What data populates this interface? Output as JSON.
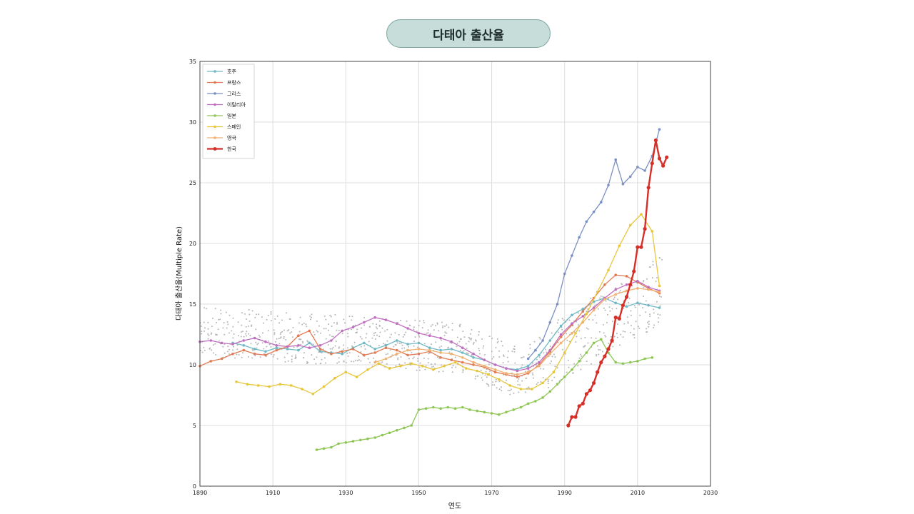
{
  "header": {
    "title": "다태아 출산율"
  },
  "chart_data": {
    "type": "line",
    "title": "다태아 출산율",
    "xlabel": "연도",
    "ylabel": "다태아 출산율(Multiple Rate)",
    "xlim": [
      1890,
      2030
    ],
    "ylim": [
      0,
      35
    ],
    "xticks": [
      1890,
      1910,
      1930,
      1950,
      1970,
      1990,
      2010,
      2030
    ],
    "yticks": [
      0,
      5,
      10,
      15,
      20,
      25,
      30,
      35
    ],
    "grid": true,
    "legend_position": "top-left",
    "series": [
      {
        "name": "호주",
        "color": "#6fb8c6",
        "x": [
          1899,
          1902,
          1905,
          1908,
          1911,
          1914,
          1917,
          1920,
          1923,
          1926,
          1929,
          1932,
          1935,
          1938,
          1941,
          1944,
          1947,
          1950,
          1953,
          1956,
          1959,
          1962,
          1965,
          1968,
          1971,
          1974,
          1977,
          1980,
          1983,
          1986,
          1989,
          1992,
          1995,
          1998,
          2001,
          2004,
          2007,
          2010,
          2013,
          2016
        ],
        "y": [
          11.8,
          11.6,
          11.3,
          11.1,
          11.4,
          11.3,
          11.2,
          11.8,
          11.1,
          11.0,
          10.9,
          11.4,
          11.8,
          11.3,
          11.6,
          12.0,
          11.7,
          11.8,
          11.4,
          11.2,
          11.3,
          11.0,
          10.6,
          10.4,
          10.0,
          9.7,
          9.6,
          9.9,
          10.8,
          12.0,
          13.2,
          14.1,
          14.6,
          15.2,
          15.5,
          15.1,
          14.8,
          15.1,
          14.9,
          14.7
        ]
      },
      {
        "name": "프랑스",
        "color": "#e07b54",
        "x": [
          1890,
          1893,
          1896,
          1899,
          1902,
          1905,
          1908,
          1911,
          1914,
          1917,
          1920,
          1923,
          1926,
          1929,
          1932,
          1935,
          1938,
          1941,
          1944,
          1947,
          1950,
          1953,
          1956,
          1959,
          1962,
          1965,
          1968,
          1971,
          1974,
          1977,
          1980,
          1983,
          1986,
          1989,
          1992,
          1995,
          1998,
          2001,
          2004,
          2007,
          2010,
          2013,
          2016
        ],
        "y": [
          9.9,
          10.3,
          10.5,
          10.9,
          11.2,
          10.9,
          10.8,
          11.2,
          11.5,
          12.4,
          12.8,
          11.3,
          10.9,
          11.1,
          11.3,
          10.8,
          11.0,
          11.4,
          11.2,
          10.8,
          10.9,
          11.1,
          10.6,
          10.4,
          10.2,
          10.0,
          9.8,
          9.4,
          9.2,
          9.0,
          9.3,
          10.0,
          11.1,
          12.3,
          13.3,
          14.4,
          15.5,
          16.6,
          17.4,
          17.3,
          16.8,
          16.3,
          15.9
        ]
      },
      {
        "name": "그리스",
        "color": "#7a8fc4",
        "x": [
          1980,
          1982,
          1984,
          1986,
          1988,
          1990,
          1992,
          1994,
          1996,
          1998,
          2000,
          2002,
          2004,
          2006,
          2008,
          2010,
          2012,
          2014,
          2016
        ],
        "y": [
          10.5,
          11.2,
          12.0,
          13.5,
          15.0,
          17.5,
          19.0,
          20.5,
          21.8,
          22.6,
          23.4,
          24.8,
          26.9,
          24.9,
          25.5,
          26.3,
          26.0,
          27.2,
          29.4
        ]
      },
      {
        "name": "이탈리아",
        "color": "#c06fc0",
        "x": [
          1890,
          1893,
          1896,
          1899,
          1902,
          1905,
          1908,
          1911,
          1914,
          1917,
          1920,
          1923,
          1926,
          1929,
          1932,
          1935,
          1938,
          1941,
          1944,
          1947,
          1950,
          1953,
          1956,
          1959,
          1962,
          1965,
          1968,
          1971,
          1974,
          1977,
          1980,
          1983,
          1986,
          1989,
          1992,
          1995,
          1998,
          2001,
          2004,
          2007,
          2010,
          2013,
          2016
        ],
        "y": [
          11.9,
          12.0,
          11.8,
          11.7,
          12.0,
          12.2,
          11.9,
          11.6,
          11.5,
          11.6,
          11.4,
          11.6,
          12.0,
          12.8,
          13.1,
          13.5,
          13.9,
          13.7,
          13.4,
          13.0,
          12.6,
          12.4,
          12.2,
          11.9,
          11.4,
          10.9,
          10.4,
          10.0,
          9.7,
          9.5,
          9.7,
          10.2,
          11.2,
          12.5,
          13.4,
          14.0,
          14.7,
          15.5,
          16.2,
          16.6,
          16.9,
          16.4,
          16.1
        ]
      },
      {
        "name": "일본",
        "color": "#8dc653",
        "x": [
          1922,
          1924,
          1926,
          1928,
          1930,
          1932,
          1934,
          1936,
          1938,
          1940,
          1942,
          1944,
          1946,
          1948,
          1950,
          1952,
          1954,
          1956,
          1958,
          1960,
          1962,
          1964,
          1966,
          1968,
          1970,
          1972,
          1974,
          1976,
          1978,
          1980,
          1982,
          1984,
          1986,
          1988,
          1990,
          1992,
          1994,
          1996,
          1998,
          2000,
          2002,
          2004,
          2006,
          2008,
          2010,
          2012,
          2014
        ],
        "y": [
          3.0,
          3.1,
          3.2,
          3.5,
          3.6,
          3.7,
          3.8,
          3.9,
          4.0,
          4.2,
          4.4,
          4.6,
          4.8,
          5.0,
          6.3,
          6.4,
          6.5,
          6.4,
          6.5,
          6.4,
          6.5,
          6.3,
          6.2,
          6.1,
          6.0,
          5.9,
          6.1,
          6.3,
          6.5,
          6.8,
          7.0,
          7.3,
          7.8,
          8.4,
          9.0,
          9.6,
          10.3,
          11.0,
          11.8,
          12.1,
          11.0,
          10.2,
          10.1,
          10.2,
          10.3,
          10.5,
          10.6
        ]
      },
      {
        "name": "스페인",
        "color": "#e8c63a",
        "x": [
          1900,
          1903,
          1906,
          1909,
          1912,
          1915,
          1918,
          1921,
          1924,
          1927,
          1930,
          1933,
          1936,
          1939,
          1942,
          1945,
          1948,
          1951,
          1954,
          1957,
          1960,
          1963,
          1966,
          1969,
          1972,
          1975,
          1978,
          1981,
          1984,
          1987,
          1990,
          1993,
          1996,
          1999,
          2002,
          2005,
          2008,
          2011,
          2014,
          2016
        ],
        "y": [
          8.6,
          8.4,
          8.3,
          8.2,
          8.4,
          8.3,
          8.0,
          7.6,
          8.2,
          8.9,
          9.4,
          9.0,
          9.6,
          10.1,
          9.7,
          9.9,
          10.1,
          9.9,
          9.6,
          9.9,
          10.2,
          9.7,
          9.5,
          9.2,
          8.8,
          8.3,
          8.0,
          8.0,
          8.5,
          9.4,
          11.0,
          12.6,
          14.2,
          16.0,
          17.8,
          19.8,
          21.5,
          22.4,
          21.0,
          16.5
        ]
      },
      {
        "name": "영국",
        "color": "#f0b070",
        "x": [
          1938,
          1941,
          1944,
          1947,
          1950,
          1953,
          1956,
          1959,
          1962,
          1965,
          1968,
          1971,
          1974,
          1977,
          1980,
          1983,
          1986,
          1989,
          1992,
          1995,
          1998,
          2001,
          2004,
          2007,
          2010,
          2013,
          2016
        ],
        "y": [
          10.2,
          10.5,
          10.9,
          11.2,
          11.3,
          11.2,
          11.0,
          10.9,
          10.6,
          10.2,
          9.9,
          9.6,
          9.3,
          9.2,
          9.4,
          9.9,
          10.9,
          11.8,
          12.6,
          13.5,
          14.5,
          15.4,
          15.8,
          16.1,
          16.3,
          16.2,
          16.0
        ]
      },
      {
        "name": "한국",
        "color": "#d62f28",
        "x": [
          1991,
          1992,
          1993,
          1994,
          1995,
          1996,
          1997,
          1998,
          1999,
          2000,
          2001,
          2002,
          2003,
          2004,
          2005,
          2006,
          2007,
          2008,
          2009,
          2010,
          2011,
          2012,
          2013,
          2014,
          2015,
          2016,
          2017,
          2018
        ],
        "y": [
          5.0,
          5.7,
          5.7,
          6.6,
          6.8,
          7.6,
          7.9,
          8.5,
          9.4,
          10.2,
          10.7,
          11.3,
          12.0,
          13.9,
          13.8,
          14.9,
          15.6,
          16.6,
          17.7,
          19.7,
          19.7,
          21.2,
          24.6,
          26.6,
          28.5,
          27.0,
          26.4,
          27.1
        ]
      }
    ]
  }
}
